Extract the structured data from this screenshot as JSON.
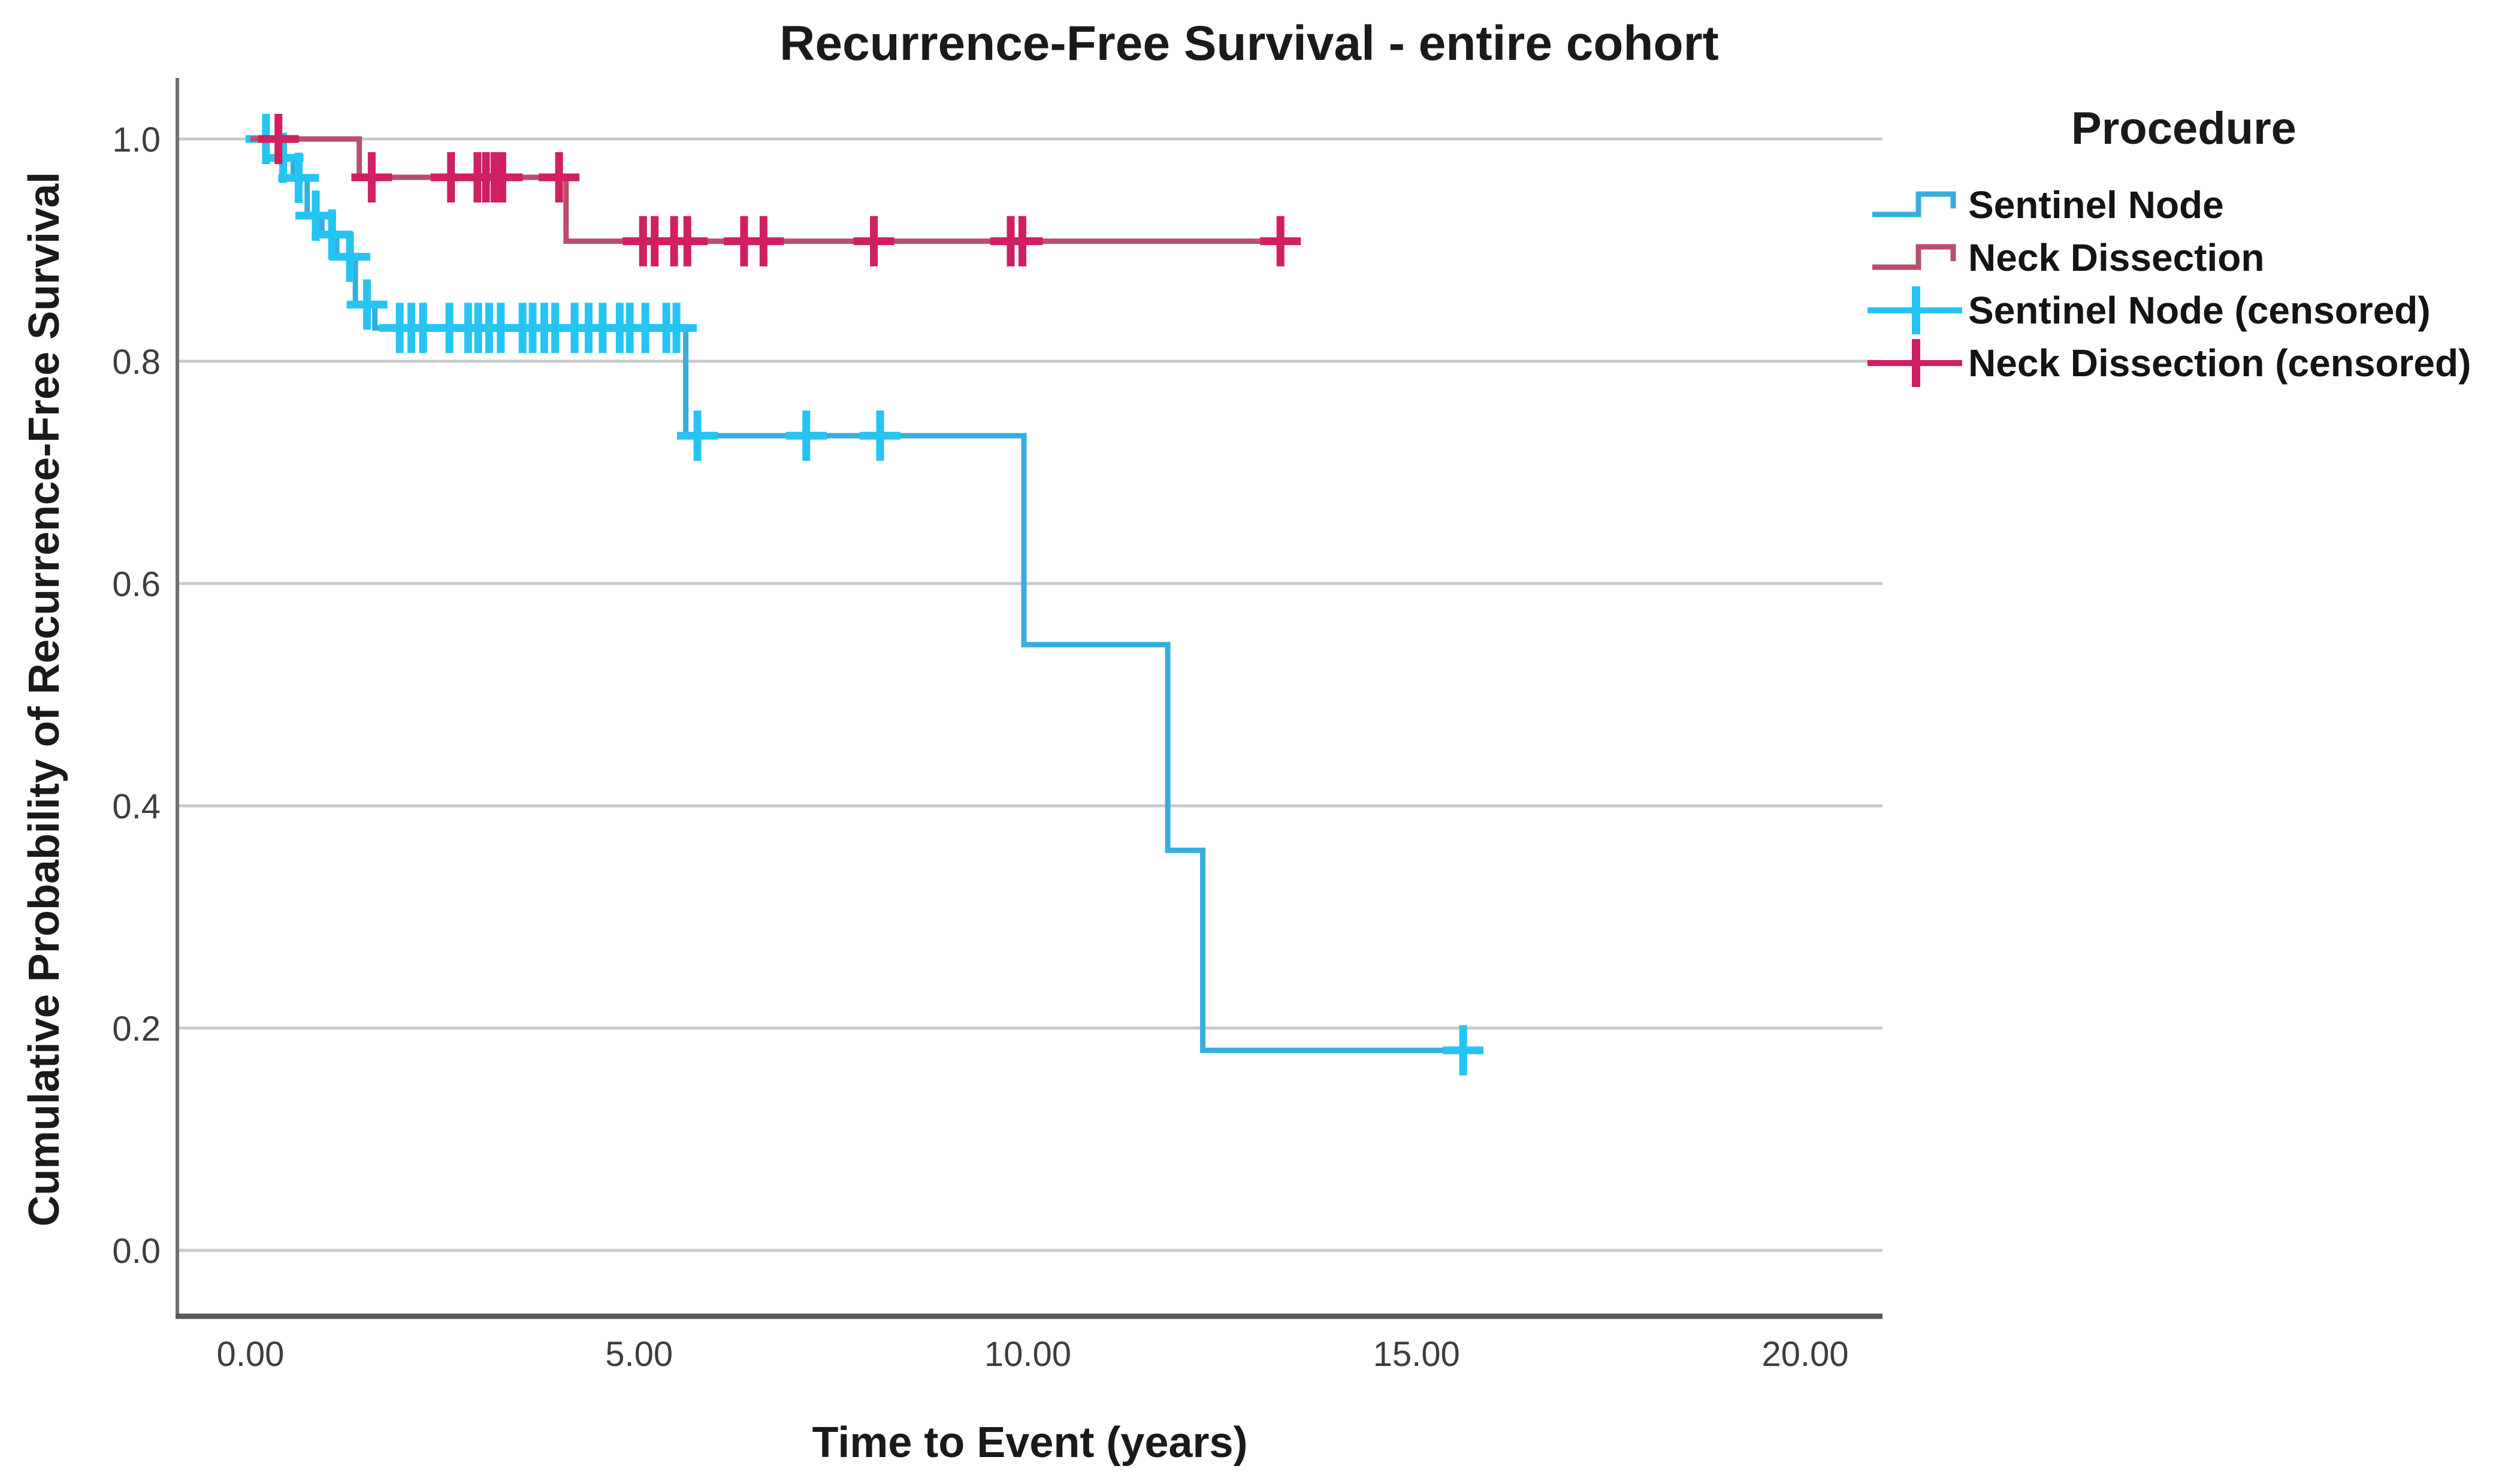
{
  "chart_data": {
    "type": "line",
    "subtype": "kaplan_meier_step",
    "title": "Recurrence-Free Survival - entire cohort",
    "xlabel": "Time to Event (years)",
    "ylabel": "Cumulative Probability of Recurrence-Free Survival",
    "x_ticks": [
      {
        "label": "0.00",
        "value": 0
      },
      {
        "label": "5.00",
        "value": 5
      },
      {
        "label": "10.00",
        "value": 10
      },
      {
        "label": "15.00",
        "value": 15
      },
      {
        "label": "20.00",
        "value": 20
      }
    ],
    "y_ticks": [
      {
        "label": "0.0",
        "value": 0.0
      },
      {
        "label": "0.2",
        "value": 0.2
      },
      {
        "label": "0.4",
        "value": 0.4
      },
      {
        "label": "0.6",
        "value": 0.6
      },
      {
        "label": "0.8",
        "value": 0.8
      },
      {
        "label": "1.0",
        "value": 1.0
      }
    ],
    "xlim": [
      -0.9,
      21.0
    ],
    "ylim": [
      -0.05,
      1.06
    ],
    "grid": "horizontal",
    "colors": {
      "gridline": "#c9c9c9",
      "axis": "#5a5a5a",
      "background": "#ffffff"
    },
    "legend": {
      "title": "Procedure",
      "position": "right",
      "entries": [
        {
          "label": "Sentinel Node",
          "glyph": "step-line",
          "color": "#35AEDC"
        },
        {
          "label": "Neck Dissection",
          "glyph": "step-line",
          "color": "#B94F6C"
        },
        {
          "label": "Sentinel Node (censored)",
          "glyph": "censor-plus",
          "color": "#26C4F2"
        },
        {
          "label": "Neck Dissection (censored)",
          "glyph": "censor-plus",
          "color": "#D01F62"
        }
      ]
    },
    "series": [
      {
        "name": "Sentinel Node",
        "line_color": "#35AEDC",
        "censor_color": "#26C4F2",
        "steps": [
          [
            0,
            1.0
          ],
          [
            0.37,
            0.983
          ],
          [
            0.55,
            0.965
          ],
          [
            0.73,
            0.931
          ],
          [
            0.92,
            0.914
          ],
          [
            1.11,
            0.894
          ],
          [
            1.35,
            0.851
          ],
          [
            1.6,
            0.83
          ],
          [
            5.6,
            0.733
          ],
          [
            9.95,
            0.545
          ],
          [
            11.8,
            0.36
          ],
          [
            12.25,
            0.18
          ]
        ],
        "end_time": 15.65,
        "censors": [
          [
            0.2,
            1.0
          ],
          [
            0.42,
            0.983
          ],
          [
            0.62,
            0.965
          ],
          [
            0.84,
            0.931
          ],
          [
            1.05,
            0.914
          ],
          [
            1.28,
            0.894
          ],
          [
            1.5,
            0.851
          ],
          [
            1.92,
            0.83
          ],
          [
            2.07,
            0.83
          ],
          [
            2.22,
            0.83
          ],
          [
            2.56,
            0.83
          ],
          [
            2.8,
            0.83
          ],
          [
            2.93,
            0.83
          ],
          [
            3.07,
            0.83
          ],
          [
            3.22,
            0.83
          ],
          [
            3.5,
            0.83
          ],
          [
            3.63,
            0.83
          ],
          [
            3.78,
            0.83
          ],
          [
            3.92,
            0.83
          ],
          [
            4.17,
            0.83
          ],
          [
            4.35,
            0.83
          ],
          [
            4.53,
            0.83
          ],
          [
            4.75,
            0.83
          ],
          [
            4.88,
            0.83
          ],
          [
            5.08,
            0.83
          ],
          [
            5.35,
            0.83
          ],
          [
            5.48,
            0.83
          ],
          [
            5.75,
            0.733
          ],
          [
            7.15,
            0.733
          ],
          [
            8.1,
            0.733
          ],
          [
            15.6,
            0.18
          ]
        ]
      },
      {
        "name": "Neck Dissection",
        "line_color": "#B94F6C",
        "censor_color": "#D01F62",
        "steps": [
          [
            0,
            1.0
          ],
          [
            1.4,
            0.9655
          ],
          [
            4.06,
            0.908
          ]
        ],
        "end_time": 13.35,
        "censors": [
          [
            0.36,
            1.0
          ],
          [
            1.56,
            0.9655
          ],
          [
            2.58,
            0.9655
          ],
          [
            2.92,
            0.9655
          ],
          [
            3.03,
            0.9655
          ],
          [
            3.14,
            0.9655
          ],
          [
            3.24,
            0.9655
          ],
          [
            3.97,
            0.9655
          ],
          [
            5.05,
            0.908
          ],
          [
            5.2,
            0.908
          ],
          [
            5.45,
            0.908
          ],
          [
            5.62,
            0.908
          ],
          [
            6.35,
            0.908
          ],
          [
            6.6,
            0.908
          ],
          [
            8.02,
            0.908
          ],
          [
            9.78,
            0.908
          ],
          [
            9.93,
            0.908
          ],
          [
            13.25,
            0.908
          ]
        ]
      }
    ]
  }
}
